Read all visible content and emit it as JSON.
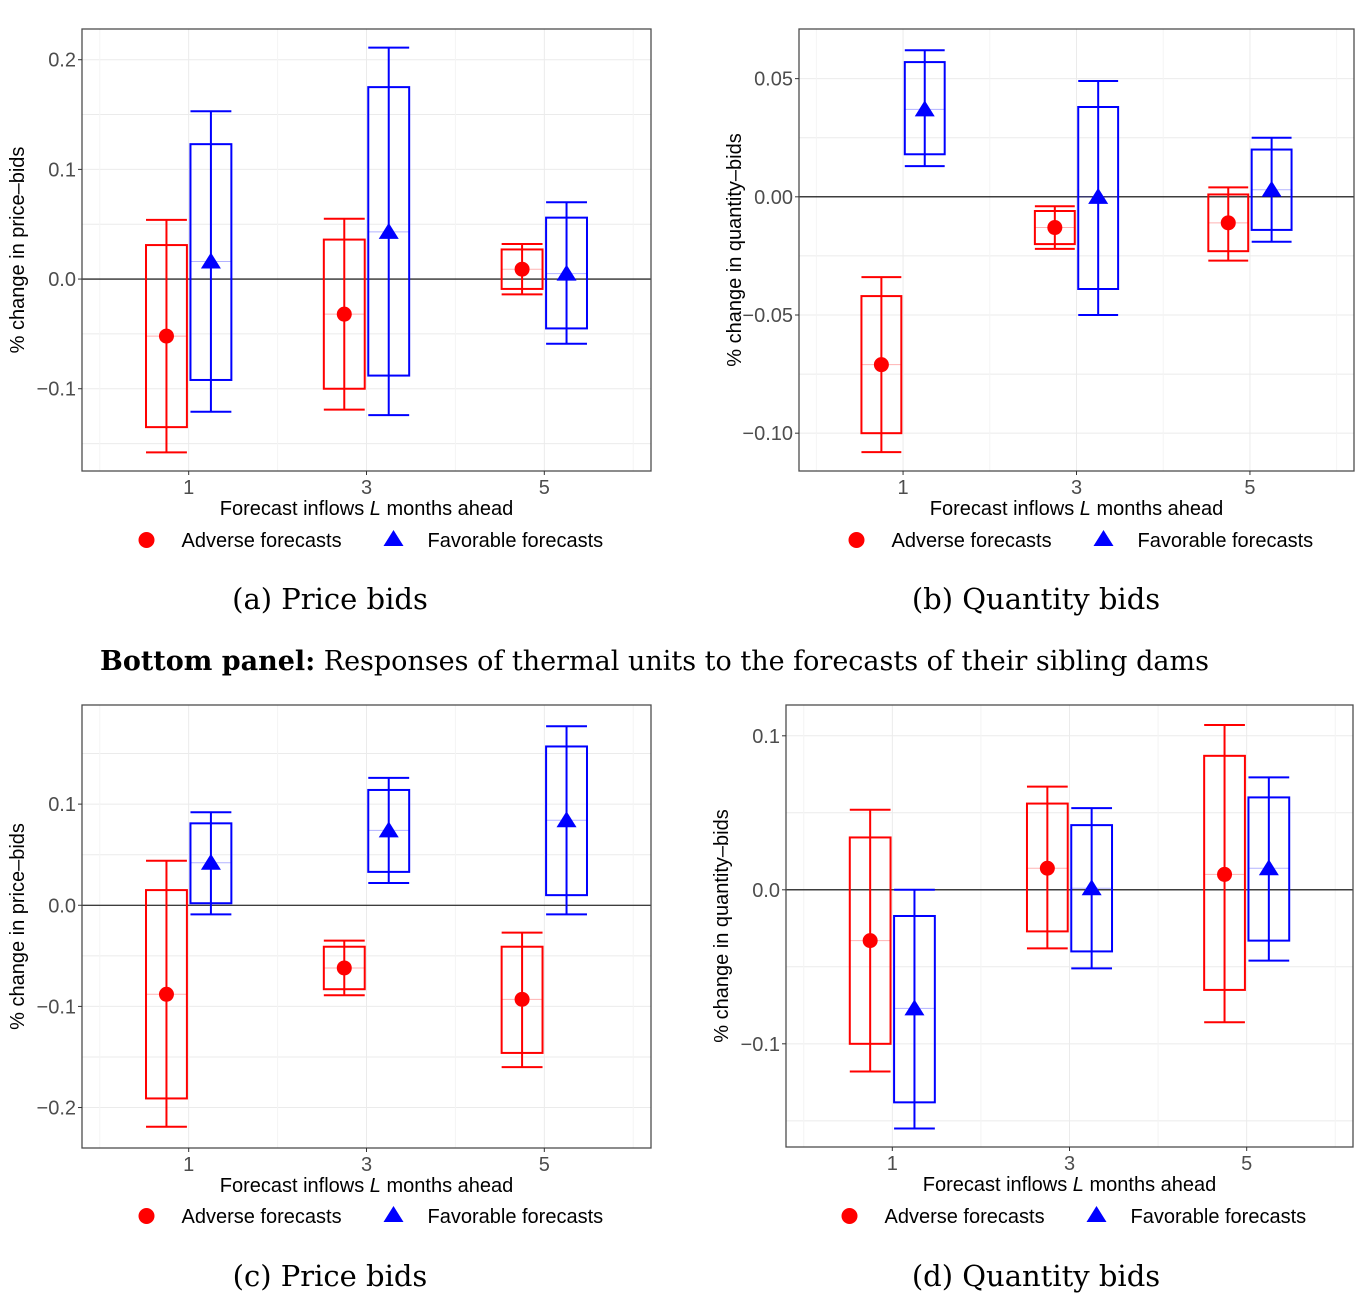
{
  "heading": {
    "bold": "Bottom panel:",
    "text": " Responses of thermal units to the forecasts of their sibling dams"
  },
  "colors": {
    "adverse": "#ff0000",
    "favorable": "#0000ff",
    "grid": "#ebebeb",
    "frame": "#4d4d4d",
    "zero_line": "#000000"
  },
  "legend": {
    "adverse": "Adverse forecasts",
    "favorable": "Favorable forecasts"
  },
  "chart_data": [
    {
      "type": "boxplot-interval",
      "caption": "(a) Price bids",
      "xlabel_prefix": "Forecast inflows ",
      "xlabel_italic": "L",
      "xlabel_suffix": " months ahead",
      "ylabel": "% change in price–bids",
      "categories": [
        "1",
        "3",
        "5"
      ],
      "x_values": [
        1,
        3,
        5
      ],
      "xlim": [
        -0.2,
        6.2
      ],
      "ylim": [
        -0.175,
        0.228
      ],
      "yticks": [
        -0.1,
        0.0,
        0.1,
        0.2
      ],
      "ytick_labels": [
        "−0.1",
        "0.0",
        "0.1",
        "0.2"
      ],
      "legend_position": "bottom",
      "grid": true,
      "series": [
        {
          "name": "Adverse forecasts",
          "marker": "circle",
          "point": [
            -0.052,
            -0.032,
            0.009
          ],
          "box_high": [
            0.031,
            0.036,
            0.027
          ],
          "box_low": [
            -0.135,
            -0.1,
            -0.009
          ],
          "whisker_high": [
            0.054,
            0.055,
            0.032
          ],
          "whisker_low": [
            -0.158,
            -0.119,
            -0.014
          ]
        },
        {
          "name": "Favorable forecasts",
          "marker": "triangle",
          "point": [
            0.016,
            0.043,
            0.005
          ],
          "box_high": [
            0.123,
            0.175,
            0.056
          ],
          "box_low": [
            -0.092,
            -0.088,
            -0.045
          ],
          "whisker_high": [
            0.153,
            0.211,
            0.07
          ],
          "whisker_low": [
            -0.121,
            -0.124,
            -0.059
          ]
        }
      ]
    },
    {
      "type": "boxplot-interval",
      "caption": "(b) Quantity bids",
      "xlabel_prefix": "Forecast inflows ",
      "xlabel_italic": "L",
      "xlabel_suffix": " months ahead",
      "ylabel": "% change in quantity–bids",
      "categories": [
        "1",
        "3",
        "5"
      ],
      "x_values": [
        1,
        3,
        5
      ],
      "xlim": [
        -0.2,
        6.2
      ],
      "ylim": [
        -0.116,
        0.071
      ],
      "yticks": [
        -0.1,
        -0.05,
        0.0,
        0.05
      ],
      "ytick_labels": [
        "−0.10",
        "−0.05",
        "0.00",
        "0.05"
      ],
      "legend_position": "bottom",
      "grid": true,
      "series": [
        {
          "name": "Adverse forecasts",
          "marker": "circle",
          "point": [
            -0.071,
            -0.013,
            -0.011
          ],
          "box_high": [
            -0.042,
            -0.006,
            0.001
          ],
          "box_low": [
            -0.1,
            -0.02,
            -0.023
          ],
          "whisker_high": [
            -0.034,
            -0.004,
            0.004
          ],
          "whisker_low": [
            -0.108,
            -0.022,
            -0.027
          ]
        },
        {
          "name": "Favorable forecasts",
          "marker": "triangle",
          "point": [
            0.037,
            0.0,
            0.003
          ],
          "box_high": [
            0.057,
            0.038,
            0.02
          ],
          "box_low": [
            0.018,
            -0.039,
            -0.014
          ],
          "whisker_high": [
            0.062,
            0.049,
            0.025
          ],
          "whisker_low": [
            0.013,
            -0.05,
            -0.019
          ]
        }
      ]
    },
    {
      "type": "boxplot-interval",
      "caption": "(c) Price bids",
      "xlabel_prefix": "Forecast inflows ",
      "xlabel_italic": "L",
      "xlabel_suffix": " months ahead",
      "ylabel": "% change in price–bids",
      "categories": [
        "1",
        "3",
        "5"
      ],
      "x_values": [
        1,
        3,
        5
      ],
      "xlim": [
        -0.2,
        6.2
      ],
      "ylim": [
        -0.24,
        0.198
      ],
      "yticks": [
        -0.2,
        -0.1,
        0.0,
        0.1
      ],
      "ytick_labels": [
        "−0.2",
        "−0.1",
        "0.0",
        "0.1"
      ],
      "legend_position": "bottom",
      "grid": true,
      "series": [
        {
          "name": "Adverse forecasts",
          "marker": "circle",
          "point": [
            -0.088,
            -0.062,
            -0.093
          ],
          "box_high": [
            0.015,
            -0.041,
            -0.041
          ],
          "box_low": [
            -0.191,
            -0.083,
            -0.146
          ],
          "whisker_high": [
            0.044,
            -0.035,
            -0.027
          ],
          "whisker_low": [
            -0.219,
            -0.089,
            -0.16
          ]
        },
        {
          "name": "Favorable forecasts",
          "marker": "triangle",
          "point": [
            0.042,
            0.074,
            0.084
          ],
          "box_high": [
            0.081,
            0.114,
            0.157
          ],
          "box_low": [
            0.002,
            0.033,
            0.01
          ],
          "whisker_high": [
            0.092,
            0.126,
            0.177
          ],
          "whisker_low": [
            -0.009,
            0.022,
            -0.009
          ]
        }
      ]
    },
    {
      "type": "boxplot-interval",
      "caption": "(d) Quantity bids",
      "xlabel_prefix": "Forecast inflows ",
      "xlabel_italic": "L",
      "xlabel_suffix": " months ahead",
      "ylabel": "% change in quantity–bids",
      "categories": [
        "1",
        "3",
        "5"
      ],
      "x_values": [
        1,
        3,
        5
      ],
      "xlim": [
        -0.2,
        6.2
      ],
      "ylim": [
        -0.167,
        0.12
      ],
      "yticks": [
        -0.1,
        0.0,
        0.1
      ],
      "ytick_labels": [
        "−0.1",
        "0.0",
        "0.1"
      ],
      "legend_position": "bottom",
      "grid": true,
      "series": [
        {
          "name": "Adverse forecasts",
          "marker": "circle",
          "point": [
            -0.033,
            0.014,
            0.01
          ],
          "box_high": [
            0.034,
            0.056,
            0.087
          ],
          "box_low": [
            -0.1,
            -0.027,
            -0.065
          ],
          "whisker_high": [
            0.052,
            0.067,
            0.107
          ],
          "whisker_low": [
            -0.118,
            -0.038,
            -0.086
          ]
        },
        {
          "name": "Favorable forecasts",
          "marker": "triangle",
          "point": [
            -0.077,
            0.001,
            0.014
          ],
          "box_high": [
            -0.017,
            0.042,
            0.06
          ],
          "box_low": [
            -0.138,
            -0.04,
            -0.033
          ],
          "whisker_high": [
            0.0,
            0.053,
            0.073
          ],
          "whisker_low": [
            -0.155,
            -0.051,
            -0.046
          ]
        }
      ]
    }
  ]
}
